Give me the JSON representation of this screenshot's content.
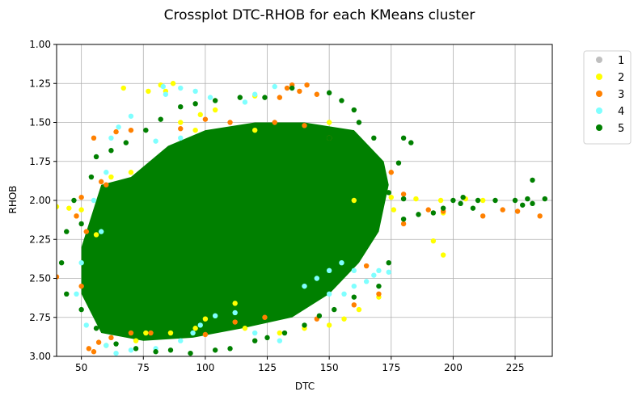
{
  "chart_data": {
    "type": "scatter",
    "title": "Crossplot DTC-RHOB for each KMeans cluster",
    "xlabel": "DTC",
    "ylabel": "RHOB",
    "xlim": [
      40,
      240
    ],
    "ylim": [
      1.0,
      3.0
    ],
    "y_inverted": true,
    "grid": true,
    "legend_placement": "outside-top-right",
    "x_ticks": [
      50,
      75,
      100,
      125,
      150,
      175,
      200,
      225
    ],
    "x_tick_labels": [
      "50",
      "75",
      "100",
      "125",
      "150",
      "175",
      "200",
      "225"
    ],
    "y_ticks": [
      1.0,
      1.25,
      1.5,
      1.75,
      2.0,
      2.25,
      2.5,
      2.75,
      3.0
    ],
    "y_tick_labels": [
      "1.00",
      "1.25",
      "1.50",
      "1.75",
      "2.00",
      "2.25",
      "2.50",
      "2.75",
      "3.00"
    ],
    "series": [
      {
        "name": "1",
        "color": "#bfbfbf",
        "points": []
      },
      {
        "name": "2",
        "color": "#ffff00",
        "points": [
          [
            82,
            1.26
          ],
          [
            87,
            1.25
          ],
          [
            84,
            1.3
          ],
          [
            77,
            1.3
          ],
          [
            67,
            1.28
          ],
          [
            90,
            1.5
          ],
          [
            96,
            1.55
          ],
          [
            98,
            1.45
          ],
          [
            104,
            1.42
          ],
          [
            120,
            1.55
          ],
          [
            120,
            1.33
          ],
          [
            150,
            1.5
          ],
          [
            160,
            2.0
          ],
          [
            175,
            1.98
          ],
          [
            185,
            1.99
          ],
          [
            195,
            2.0
          ],
          [
            205,
            1.99
          ],
          [
            212,
            2.0
          ],
          [
            196,
            2.08
          ],
          [
            192,
            2.26
          ],
          [
            196,
            2.35
          ],
          [
            176,
            2.06
          ],
          [
            170,
            2.62
          ],
          [
            162,
            2.7
          ],
          [
            156,
            2.76
          ],
          [
            150,
            2.8
          ],
          [
            140,
            2.82
          ],
          [
            130,
            2.85
          ],
          [
            116,
            2.82
          ],
          [
            112,
            2.66
          ],
          [
            100,
            2.76
          ],
          [
            96,
            2.82
          ],
          [
            86,
            2.85
          ],
          [
            76,
            2.85
          ],
          [
            72,
            2.9
          ],
          [
            60,
            2.93
          ],
          [
            45,
            2.05
          ],
          [
            50,
            2.06
          ],
          [
            48,
            2.1
          ],
          [
            56,
            2.22
          ],
          [
            40,
            2.04
          ],
          [
            62,
            1.85
          ],
          [
            70,
            1.82
          ]
        ]
      },
      {
        "name": "3",
        "color": "#ff8000",
        "points": [
          [
            133,
            1.28
          ],
          [
            135,
            1.26
          ],
          [
            138,
            1.3
          ],
          [
            141,
            1.26
          ],
          [
            145,
            1.32
          ],
          [
            130,
            1.34
          ],
          [
            128,
            1.5
          ],
          [
            140,
            1.52
          ],
          [
            110,
            1.5
          ],
          [
            100,
            1.48
          ],
          [
            90,
            1.54
          ],
          [
            70,
            1.55
          ],
          [
            64,
            1.56
          ],
          [
            55,
            1.6
          ],
          [
            58,
            1.88
          ],
          [
            50,
            1.98
          ],
          [
            48,
            2.1
          ],
          [
            60,
            1.9
          ],
          [
            52,
            2.2
          ],
          [
            40,
            2.49
          ],
          [
            50,
            2.55
          ],
          [
            53,
            2.95
          ],
          [
            55,
            2.97
          ],
          [
            57,
            2.91
          ],
          [
            62,
            2.88
          ],
          [
            70,
            2.85
          ],
          [
            78,
            2.85
          ],
          [
            100,
            2.86
          ],
          [
            112,
            2.78
          ],
          [
            124,
            2.75
          ],
          [
            145,
            2.76
          ],
          [
            160,
            2.67
          ],
          [
            165,
            2.42
          ],
          [
            170,
            2.6
          ],
          [
            180,
            2.15
          ],
          [
            190,
            2.06
          ],
          [
            196,
            2.07
          ],
          [
            212,
            2.1
          ],
          [
            220,
            2.06
          ],
          [
            226,
            2.07
          ],
          [
            235,
            2.1
          ],
          [
            180,
            1.96
          ],
          [
            175,
            1.82
          ],
          [
            150,
            1.6
          ]
        ]
      },
      {
        "name": "4",
        "color": "#7fffff",
        "points": [
          [
            83,
            1.27
          ],
          [
            84,
            1.32
          ],
          [
            90,
            1.28
          ],
          [
            96,
            1.3
          ],
          [
            102,
            1.34
          ],
          [
            116,
            1.37
          ],
          [
            120,
            1.32
          ],
          [
            128,
            1.27
          ],
          [
            70,
            1.46
          ],
          [
            65,
            1.53
          ],
          [
            62,
            1.6
          ],
          [
            60,
            1.82
          ],
          [
            55,
            2.0
          ],
          [
            58,
            2.2
          ],
          [
            50,
            2.4
          ],
          [
            48,
            2.6
          ],
          [
            52,
            2.8
          ],
          [
            60,
            2.93
          ],
          [
            64,
            2.98
          ],
          [
            70,
            2.96
          ],
          [
            80,
            2.95
          ],
          [
            90,
            2.9
          ],
          [
            95,
            2.85
          ],
          [
            98,
            2.8
          ],
          [
            104,
            2.74
          ],
          [
            112,
            2.72
          ],
          [
            140,
            2.55
          ],
          [
            150,
            2.45
          ],
          [
            155,
            2.4
          ],
          [
            160,
            2.45
          ],
          [
            165,
            2.52
          ],
          [
            170,
            2.45
          ],
          [
            174,
            2.46
          ],
          [
            156,
            2.6
          ],
          [
            150,
            2.6
          ],
          [
            120,
            2.85
          ],
          [
            130,
            2.9
          ],
          [
            168,
            2.48
          ],
          [
            160,
            2.55
          ],
          [
            145,
            2.5
          ],
          [
            90,
            1.6
          ],
          [
            80,
            1.62
          ]
        ]
      },
      {
        "name": "5",
        "color": "#008000",
        "points": [
          [
            135,
            1.28
          ],
          [
            150,
            1.31
          ],
          [
            155,
            1.36
          ],
          [
            160,
            1.42
          ],
          [
            162,
            1.5
          ],
          [
            168,
            1.6
          ],
          [
            180,
            1.6
          ],
          [
            183,
            1.63
          ],
          [
            178,
            1.76
          ],
          [
            174,
            1.95
          ],
          [
            180,
            1.99
          ],
          [
            200,
            2.0
          ],
          [
            203,
            2.02
          ],
          [
            210,
            2.0
          ],
          [
            217,
            2.0
          ],
          [
            225,
            2.0
          ],
          [
            230,
            1.99
          ],
          [
            232,
            1.87
          ],
          [
            237,
            1.99
          ],
          [
            232,
            2.02
          ],
          [
            228,
            2.03
          ],
          [
            208,
            2.05
          ],
          [
            204,
            1.98
          ],
          [
            196,
            2.05
          ],
          [
            186,
            2.09
          ],
          [
            192,
            2.08
          ],
          [
            180,
            2.12
          ],
          [
            174,
            2.4
          ],
          [
            170,
            2.55
          ],
          [
            160,
            2.62
          ],
          [
            152,
            2.7
          ],
          [
            146,
            2.74
          ],
          [
            140,
            2.8
          ],
          [
            132,
            2.85
          ],
          [
            125,
            2.88
          ],
          [
            120,
            2.9
          ],
          [
            110,
            2.95
          ],
          [
            104,
            2.96
          ],
          [
            94,
            2.98
          ],
          [
            86,
            2.96
          ],
          [
            80,
            2.97
          ],
          [
            72,
            2.95
          ],
          [
            64,
            2.92
          ],
          [
            56,
            2.82
          ],
          [
            50,
            2.7
          ],
          [
            44,
            2.6
          ],
          [
            42,
            2.4
          ],
          [
            44,
            2.2
          ],
          [
            47,
            2.0
          ],
          [
            54,
            1.85
          ],
          [
            56,
            1.72
          ],
          [
            62,
            1.68
          ],
          [
            68,
            1.63
          ],
          [
            76,
            1.55
          ],
          [
            82,
            1.48
          ],
          [
            90,
            1.4
          ],
          [
            96,
            1.38
          ],
          [
            104,
            1.36
          ],
          [
            114,
            1.34
          ],
          [
            124,
            1.34
          ],
          [
            50,
            2.15
          ],
          [
            150,
            1.6
          ],
          [
            170,
            1.9
          ]
        ]
      }
    ],
    "clouds": [
      {
        "series": "5",
        "region": [
          [
            58,
            1.9
          ],
          [
            70,
            1.85
          ],
          [
            85,
            1.65
          ],
          [
            100,
            1.55
          ],
          [
            120,
            1.5
          ],
          [
            140,
            1.5
          ],
          [
            160,
            1.55
          ],
          [
            172,
            1.75
          ],
          [
            174,
            1.9
          ],
          [
            170,
            2.2
          ],
          [
            162,
            2.4
          ],
          [
            150,
            2.6
          ],
          [
            135,
            2.75
          ],
          [
            115,
            2.82
          ],
          [
            95,
            2.88
          ],
          [
            75,
            2.9
          ],
          [
            58,
            2.85
          ],
          [
            50,
            2.6
          ],
          [
            50,
            2.3
          ]
        ]
      }
    ]
  }
}
